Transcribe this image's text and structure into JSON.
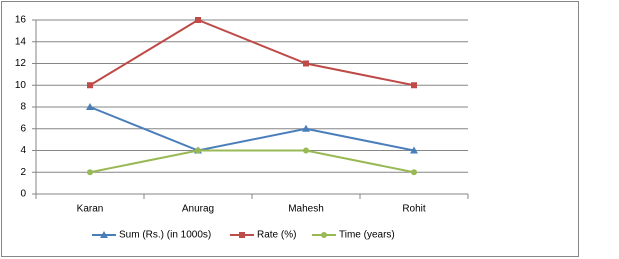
{
  "chart_data": {
    "type": "line",
    "categories": [
      "Karan",
      "Anurag",
      "Mahesh",
      "Rohit"
    ],
    "series": [
      {
        "name": "Sum (Rs.) (in 1000s)",
        "color": "#4a7ebb",
        "marker": "triangle",
        "values": [
          8,
          4,
          6,
          4
        ]
      },
      {
        "name": "Rate (%)",
        "color": "#be4b48",
        "marker": "square",
        "values": [
          10,
          16,
          12,
          10
        ]
      },
      {
        "name": "Time (years)",
        "color": "#98b954",
        "marker": "circle",
        "values": [
          2,
          4,
          4,
          2
        ]
      }
    ],
    "ylim": [
      0,
      16
    ],
    "yticks": [
      0,
      2,
      4,
      6,
      8,
      10,
      12,
      14,
      16
    ],
    "grid": true,
    "legend": "bottom"
  }
}
